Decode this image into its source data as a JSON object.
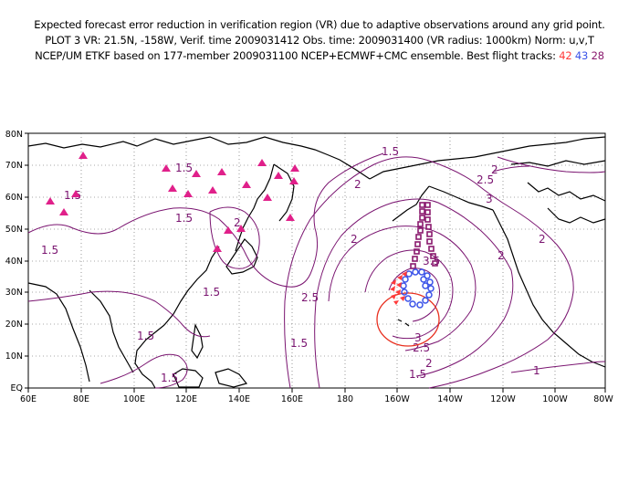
{
  "header": {
    "line1": "Expected forecast error reduction in verification region (VR) due to adaptive observations around any grid point.",
    "line2": "PLOT 3 VR: 21.5N, -158W, Verif. time 2009031412 Obs. time: 2009031400 (VR radius: 1000km) Norm: u,v,T",
    "line3_prefix": "NCEP/UM ETKF based on 177-member 2009031100 NCEP+ECMWF+CMC ensemble. Best flight tracks:",
    "track_ids": [
      "42",
      "43",
      "28"
    ]
  },
  "map": {
    "lon_labels": [
      "60E",
      "80E",
      "100E",
      "120E",
      "140E",
      "160E",
      "180",
      "160W",
      "140W",
      "120W",
      "100W",
      "80W"
    ],
    "lat_labels": [
      "EQ",
      "10N",
      "20N",
      "30N",
      "40N",
      "50N",
      "60N",
      "70N",
      "80N"
    ],
    "contour_labels": [
      "1.5",
      "1.5",
      "1.5",
      "1.5",
      "1.5",
      "1.5",
      "1.5",
      "1.5",
      "1.5",
      "1.5",
      "2",
      "2",
      "2",
      "2",
      "2",
      "2",
      "2",
      "2.5",
      "2.5",
      "2.5",
      "3",
      "3",
      "3.5",
      "1"
    ],
    "colors": {
      "contour": "#7a1470",
      "track_42": "#ff3b3b",
      "track_43": "#3a52e8",
      "track_28": "#8a1a6e",
      "triangles": "#e0208a",
      "verification_circle": "#e83020"
    }
  }
}
